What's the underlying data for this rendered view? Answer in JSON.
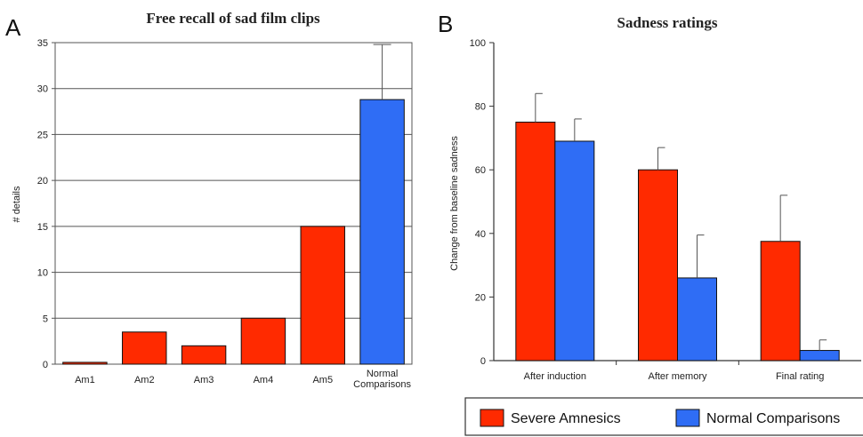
{
  "colors": {
    "amnesic": "#ff2a00",
    "normal": "#2f6df5",
    "grid": "#555555",
    "error": "#555555"
  },
  "chart_data": [
    {
      "panel_label": "A",
      "type": "bar",
      "title": "Free recall of sad film clips",
      "ylabel": "# details",
      "xlabel": "",
      "ylim": [
        0,
        35
      ],
      "yticks": [
        "0",
        "5",
        "10",
        "15",
        "20",
        "25",
        "30",
        "35"
      ],
      "ytick_values": [
        0,
        5,
        10,
        15,
        20,
        25,
        30,
        35
      ],
      "grid": true,
      "categories": [
        "Am1",
        "Am2",
        "Am3",
        "Am4",
        "Am5",
        "Normal Comparisons"
      ],
      "values": [
        0.2,
        3.5,
        2.0,
        5.0,
        15.0,
        28.8
      ],
      "error_upper": [
        null,
        null,
        null,
        null,
        null,
        34.8
      ],
      "bar_groups": [
        "amnesic",
        "amnesic",
        "amnesic",
        "amnesic",
        "amnesic",
        "normal"
      ]
    },
    {
      "panel_label": "B",
      "type": "bar",
      "title": "Sadness ratings",
      "ylabel": "Change from baseline sadness",
      "xlabel": "",
      "ylim": [
        0,
        100
      ],
      "yticks": [
        "0",
        "20",
        "40",
        "60",
        "80",
        "100"
      ],
      "ytick_values": [
        0,
        20,
        40,
        60,
        80,
        100
      ],
      "grid": false,
      "categories": [
        "After induction",
        "After memory",
        "Final rating"
      ],
      "series": [
        {
          "name": "Severe Amnesics",
          "group": "amnesic",
          "values": [
            75,
            60,
            37.5
          ],
          "error_upper": [
            84,
            67,
            52
          ]
        },
        {
          "name": "Normal Comparisons",
          "group": "normal",
          "values": [
            69,
            26,
            3.2
          ],
          "error_upper": [
            76,
            39.5,
            6.5
          ]
        }
      ],
      "legend": "bottom"
    }
  ]
}
